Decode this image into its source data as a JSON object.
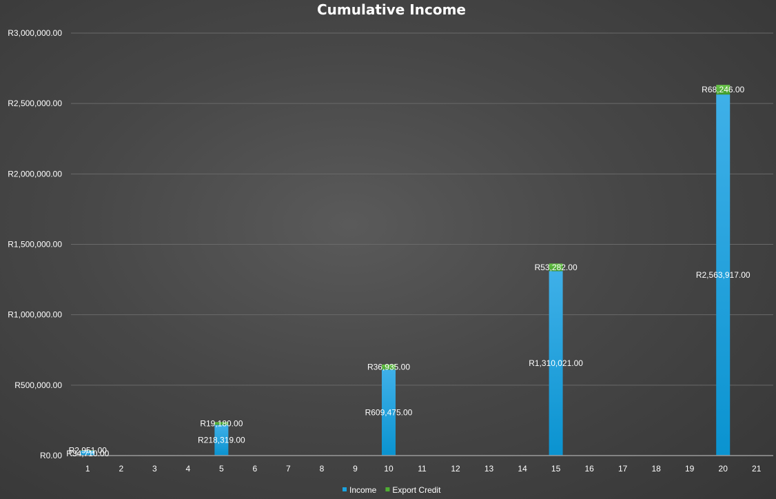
{
  "chart_data": {
    "type": "bar",
    "stacked": true,
    "title": "Cumulative Income",
    "xlabel": "",
    "ylabel": "",
    "categories": [
      "1",
      "2",
      "3",
      "4",
      "5",
      "6",
      "7",
      "8",
      "9",
      "10",
      "11",
      "12",
      "13",
      "14",
      "15",
      "16",
      "17",
      "18",
      "19",
      "20",
      "21"
    ],
    "ylim": [
      0,
      3000000
    ],
    "y_ticks": [
      0,
      500000,
      1000000,
      1500000,
      2000000,
      2500000,
      3000000
    ],
    "y_tick_labels": [
      "R0.00",
      "R500,000.00",
      "R1,000,000.00",
      "R1,500,000.00",
      "R2,000,000.00",
      "R2,500,000.00",
      "R3,000,000.00"
    ],
    "grid": true,
    "legend_position": "bottom",
    "series": [
      {
        "name": "Income",
        "color": "#1aa3e0",
        "values": [
          34710,
          null,
          null,
          null,
          218319,
          null,
          null,
          null,
          null,
          609475,
          null,
          null,
          null,
          null,
          1310021,
          null,
          null,
          null,
          null,
          2563917,
          null
        ],
        "labels": [
          "R34,710.00",
          null,
          null,
          null,
          "R218,319.00",
          null,
          null,
          null,
          null,
          "R609,475.00",
          null,
          null,
          null,
          null,
          "R1,310,021.00",
          null,
          null,
          null,
          null,
          "R2,563,917.00",
          null
        ]
      },
      {
        "name": "Export Credit",
        "color": "#4fae33",
        "values": [
          2951,
          null,
          null,
          null,
          19180,
          null,
          null,
          null,
          null,
          36935,
          null,
          null,
          null,
          null,
          53282,
          null,
          null,
          null,
          null,
          68246,
          null
        ],
        "labels": [
          "R2,951.00",
          null,
          null,
          null,
          "R19,180.00",
          null,
          null,
          null,
          null,
          "R36,935.00",
          null,
          null,
          null,
          null,
          "R53,282.00",
          null,
          null,
          null,
          null,
          "R68,246.00",
          null
        ]
      }
    ]
  }
}
